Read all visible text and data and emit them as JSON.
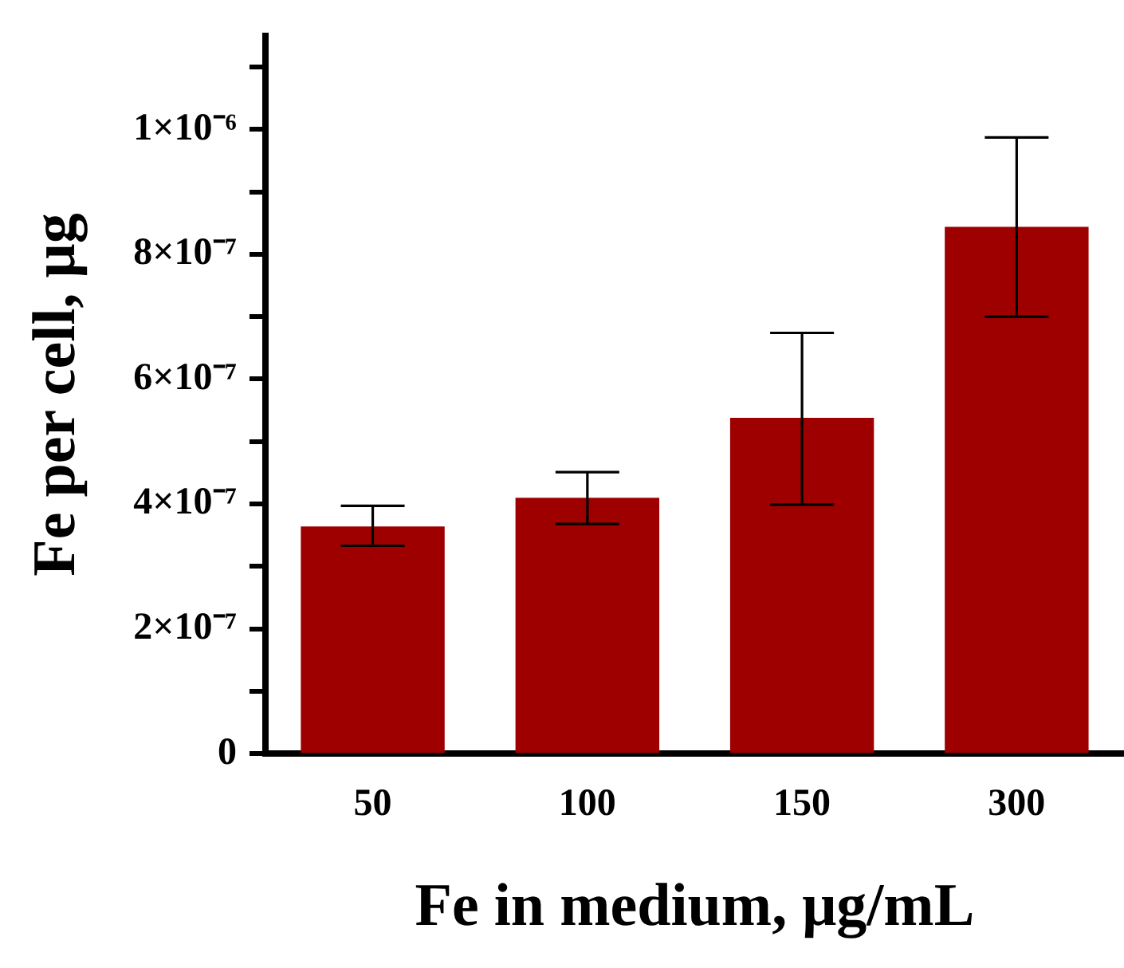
{
  "chart_data": {
    "type": "bar",
    "xlabel": "Fe in medium, μg/mL",
    "ylabel": "Fe per cell, μg",
    "categories": [
      "50",
      "100",
      "150",
      "300"
    ],
    "values": [
      3.64e-07,
      4.1e-07,
      5.38e-07,
      8.44e-07
    ],
    "errors": [
      [
        3.33e-07,
        3.97e-07
      ],
      [
        3.68e-07,
        4.51e-07
      ],
      [
        3.99e-07,
        6.74e-07
      ],
      [
        7e-07,
        9.87e-07
      ]
    ],
    "color": "#9e0000",
    "ylim": [
      0,
      1.15e-06
    ],
    "yticks": [
      0,
      {
        "value": 1e-07,
        "label": null
      },
      {
        "value": 2e-07,
        "label": "2×10⁻⁷"
      },
      {
        "value": 3e-07,
        "label": null
      },
      {
        "value": 4e-07,
        "label": "4×10⁻⁷"
      },
      {
        "value": 5e-07,
        "label": null
      },
      {
        "value": 6e-07,
        "label": "6×10⁻⁷"
      },
      {
        "value": 7e-07,
        "label": null
      },
      {
        "value": 8e-07,
        "label": "8×10⁻⁷"
      },
      {
        "value": 9e-07,
        "label": null
      },
      {
        "value": 1e-06,
        "label": "1×10⁻⁶"
      },
      {
        "value": 1.1e-06,
        "label": null
      }
    ],
    "grid": false,
    "legend": false
  }
}
